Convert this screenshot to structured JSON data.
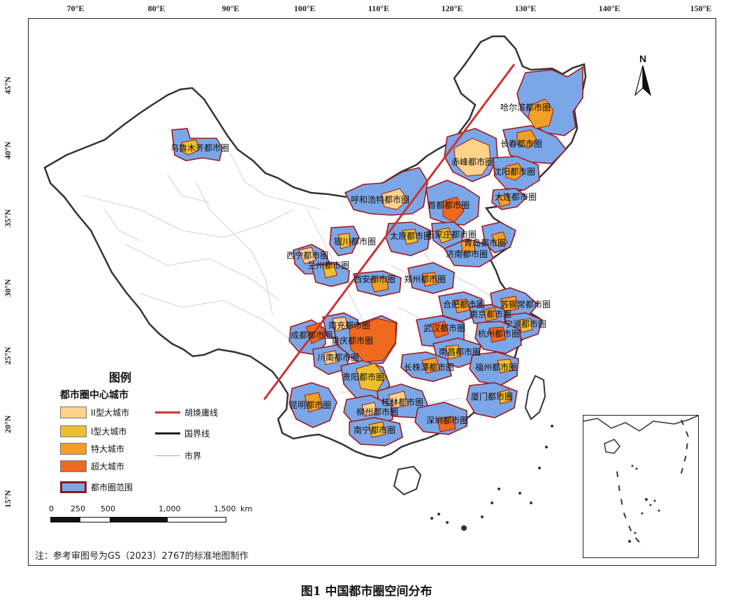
{
  "caption": "图1 中国都市圈空间分布",
  "note": "注：参考审图号为GS（2023）2767的标准地图制作",
  "north_label": "N",
  "longitude_ticks": [
    "70°E",
    "80°E",
    "90°E",
    "100°E",
    "110°E",
    "120°E",
    "130°E",
    "140°E",
    "150°E"
  ],
  "latitude_ticks": [
    "45°N",
    "40°N",
    "35°N",
    "30°N",
    "25°N",
    "20°N",
    "15°N"
  ],
  "legend": {
    "title": "图例",
    "subtitle": "都市圈中心城市",
    "items": [
      {
        "label": "II型大城市",
        "color": "#fdd38a"
      },
      {
        "label": "I型大城市",
        "color": "#ecc12e"
      },
      {
        "label": "特大城市",
        "color": "#f0a025"
      },
      {
        "label": "超大城市",
        "color": "#ee6a1f"
      },
      {
        "label": "都市圈范围",
        "color": "#7ba7e8"
      }
    ],
    "lines": [
      {
        "label": "胡焕庸线",
        "color": "#cc3333"
      },
      {
        "label": "国界线",
        "color": "#222222"
      },
      {
        "label": "市界",
        "color": "#aaaaaa"
      }
    ]
  },
  "scale": {
    "labels": [
      "0",
      "250",
      "500",
      "1,000",
      "1,500"
    ],
    "unit": "km"
  },
  "metro_areas": [
    {
      "name": "哈尔滨都市圈",
      "center_type": "特大城市"
    },
    {
      "name": "长春都市圈",
      "center_type": "特大城市"
    },
    {
      "name": "赤峰都市圈",
      "center_type": "II型大城市"
    },
    {
      "name": "沈阳都市圈",
      "center_type": "特大城市"
    },
    {
      "name": "大连都市圈",
      "center_type": "特大城市"
    },
    {
      "name": "乌鲁木齐都市圈",
      "center_type": "I型大城市"
    },
    {
      "name": "呼和浩特都市圈",
      "center_type": "II型大城市"
    },
    {
      "name": "首都都市圈",
      "center_type": "超大城市"
    },
    {
      "name": "银川都市圈",
      "center_type": "I型大城市"
    },
    {
      "name": "太原都市圈",
      "center_type": "I型大城市"
    },
    {
      "name": "石家庄都市圈",
      "center_type": "I型大城市"
    },
    {
      "name": "青岛都市圈",
      "center_type": "特大城市"
    },
    {
      "name": "济南都市圈",
      "center_type": "特大城市"
    },
    {
      "name": "西宁都市圈",
      "center_type": "II型大城市"
    },
    {
      "name": "兰州都市圈",
      "center_type": "I型大城市"
    },
    {
      "name": "西安都市圈",
      "center_type": "特大城市"
    },
    {
      "name": "郑州都市圈",
      "center_type": "特大城市"
    },
    {
      "name": "合肥都市圈",
      "center_type": "特大城市"
    },
    {
      "name": "苏锡常都市圈",
      "center_type": "特大城市"
    },
    {
      "name": "南京都市圈",
      "center_type": "特大城市"
    },
    {
      "name": "宁波都市圈",
      "center_type": "I型大城市"
    },
    {
      "name": "成都都市圈",
      "center_type": "超大城市"
    },
    {
      "name": "南充都市圈",
      "center_type": "II型大城市"
    },
    {
      "name": "重庆都市圈",
      "center_type": "超大城市"
    },
    {
      "name": "武汉都市圈",
      "center_type": "超大城市"
    },
    {
      "name": "杭州都市圈",
      "center_type": "超大城市"
    },
    {
      "name": "川南都市圈",
      "center_type": "II型大城市"
    },
    {
      "name": "贵阳都市圈",
      "center_type": "I型大城市"
    },
    {
      "name": "南昌都市圈",
      "center_type": "I型大城市"
    },
    {
      "name": "长株潭都市圈",
      "center_type": "特大城市"
    },
    {
      "name": "福州都市圈",
      "center_type": "I型大城市"
    },
    {
      "name": "昆明都市圈",
      "center_type": "特大城市"
    },
    {
      "name": "桂林都市圈",
      "center_type": "II型大城市"
    },
    {
      "name": "柳州都市圈",
      "center_type": "II型大城市"
    },
    {
      "name": "厦门都市圈",
      "center_type": "I型大城市"
    },
    {
      "name": "深圳都市圈",
      "center_type": "超大城市"
    },
    {
      "name": "南宁都市圈",
      "center_type": "I型大城市"
    }
  ]
}
